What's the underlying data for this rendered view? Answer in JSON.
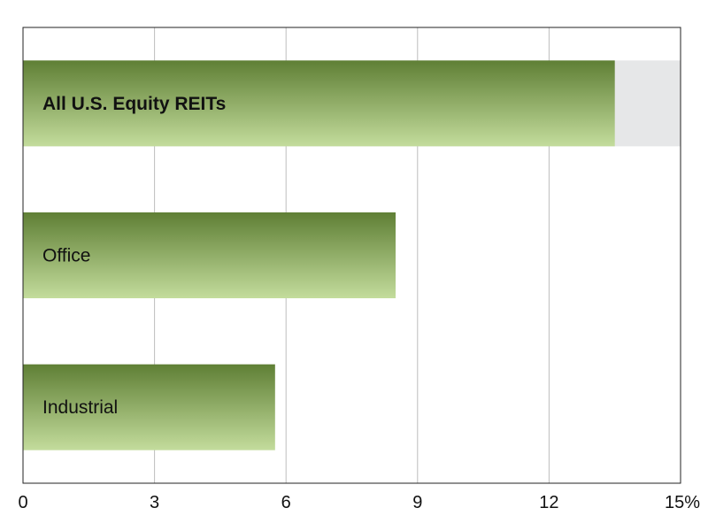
{
  "chart_data": {
    "type": "bar",
    "orientation": "horizontal",
    "categories": [
      "All U.S. Equity REITs",
      "Office",
      "Industrial"
    ],
    "values": [
      13.5,
      8.5,
      5.75
    ],
    "highlight_category": "All U.S. Equity REITs",
    "xlim": [
      0,
      15
    ],
    "xticks": [
      0,
      3,
      6,
      9,
      12,
      15
    ],
    "xtick_labels": [
      "0",
      "3",
      "6",
      "9",
      "12",
      "15%"
    ],
    "grid": true,
    "legend": "none",
    "colors": {
      "bar_top": "#5f7f35",
      "bar_bottom": "#c3dc9c",
      "row_highlight": "#e6e7e8",
      "gridline": "#bdbdbd",
      "frame": "#222222"
    }
  }
}
